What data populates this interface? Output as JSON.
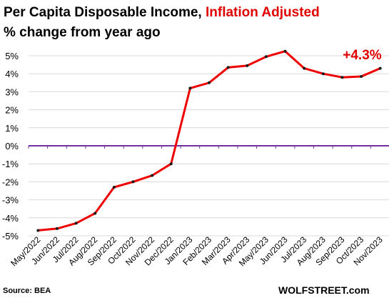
{
  "header": {
    "title_main": "Per Capita Disposable  Income, ",
    "title_highlight": "Inflation Adjusted",
    "subtitle": "% change from year ago"
  },
  "footer": {
    "source": "Source: BEA",
    "brand": "WOLFSTREET.com"
  },
  "colors": {
    "line": "#ee0000",
    "markers": "#1a1a1a",
    "zero_line": "#7030a0",
    "annotation": "#e00000",
    "gridlines": "#d9d9d9"
  },
  "chart_data": {
    "type": "line",
    "title": "Per Capita Disposable  Income, Inflation Adjusted",
    "subtitle": "% change from year ago",
    "categories": [
      "May/2022",
      "Jun/2022",
      "Jul/2022",
      "Aug/2022",
      "Sep/2022",
      "Oct/2022",
      "Nov/2022",
      "Dec/2022",
      "Jan/2023",
      "Feb/2023",
      "Mar/2023",
      "Apr/2023",
      "May/2023",
      "Jun/2023",
      "Jul/2023",
      "Aug/2023",
      "Sep/2023",
      "Oct/2023",
      "Nov/2023"
    ],
    "series": [
      {
        "values": [
          -4.7,
          -4.6,
          -4.3,
          -3.75,
          -2.3,
          -2.0,
          -1.65,
          -1.0,
          3.2,
          3.5,
          4.35,
          4.45,
          4.95,
          5.25,
          4.3,
          4.0,
          3.8,
          3.85,
          4.3
        ]
      }
    ],
    "ylim": [
      -5,
      5
    ],
    "yticks": [
      -5,
      -4,
      -3,
      -2,
      -1,
      0,
      1,
      2,
      3,
      4,
      5
    ],
    "ytick_labels": [
      "-5%",
      "-4%",
      "-3%",
      "-2%",
      "-1%",
      "0%",
      "1%",
      "2%",
      "3%",
      "4%",
      "5%"
    ],
    "annotation": {
      "text": "+4.3%",
      "category": "Nov/2023"
    },
    "grid": true,
    "legend": "none"
  }
}
